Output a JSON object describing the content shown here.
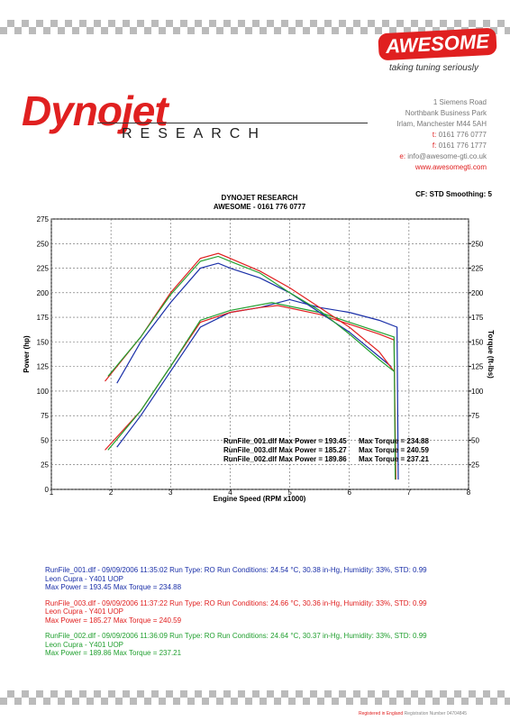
{
  "header": {
    "awesome_logo": "AWESOME",
    "tagline": "taking tuning seriously",
    "dynojet_logo": "Dynojet",
    "research": "RESEARCH",
    "address": [
      "1 Siemens Road",
      "Northbank Business Park",
      "Irlam, Manchester M44 5AH"
    ],
    "contacts": [
      {
        "prefix": "t:",
        "text": "0161 776 0777"
      },
      {
        "prefix": "f:",
        "text": "0161 776 1777"
      },
      {
        "prefix": "e:",
        "text": "info@awesome-gti.co.uk"
      }
    ],
    "web": "www.awesomegti.com"
  },
  "chart_data": {
    "type": "line",
    "title": "DYNOJET RESEARCH",
    "subtitle": "AWESOME - 0161 776 0777",
    "settings": "CF: STD  Smoothing: 5",
    "xlabel": "Engine Speed (RPM x1000)",
    "ylabel": "Power (hp)",
    "y2label": "Torque (ft-lbs)",
    "xlim": [
      1,
      8
    ],
    "xticks": [
      1,
      2,
      3,
      4,
      5,
      6,
      7,
      8
    ],
    "ylim": [
      0,
      275
    ],
    "yticks": [
      0,
      25,
      50,
      75,
      100,
      125,
      150,
      175,
      200,
      225,
      250,
      275
    ],
    "y2lim": [
      0,
      275
    ],
    "y2ticks": [
      25,
      50,
      75,
      100,
      125,
      150,
      175,
      200,
      225,
      250
    ],
    "grid": true,
    "series": [
      {
        "color": "#1a2fa8",
        "x": [
          2.1,
          2.5,
          3,
          3.5,
          4,
          4.5,
          5,
          5.5,
          6,
          6.5,
          6.8,
          6.82
        ],
        "values": [
          43,
          75,
          120,
          165,
          180,
          185,
          193,
          185,
          180,
          172,
          165,
          10
        ]
      },
      {
        "color": "#e02020",
        "x": [
          1.9,
          2.5,
          3,
          3.5,
          4,
          4.5,
          4.8,
          5.5,
          6,
          6.5,
          6.75,
          6.78
        ],
        "values": [
          40,
          80,
          125,
          170,
          180,
          185,
          187,
          178,
          168,
          158,
          152,
          10
        ]
      },
      {
        "color": "#22a030",
        "x": [
          1.95,
          2.5,
          3,
          3.5,
          4,
          4.7,
          5.5,
          6,
          6.5,
          6.75,
          6.77
        ],
        "values": [
          40,
          80,
          125,
          172,
          182,
          190,
          180,
          170,
          160,
          155,
          10
        ]
      },
      {
        "color": "#1a2fa8",
        "axis": "y2",
        "x": [
          2.1,
          2.5,
          3,
          3.5,
          3.8,
          4,
          4.5,
          5,
          5.5,
          6,
          6.5,
          6.7
        ],
        "values": [
          108,
          150,
          190,
          225,
          230,
          225,
          215,
          200,
          180,
          160,
          135,
          125
        ]
      },
      {
        "color": "#e02020",
        "axis": "y2",
        "x": [
          1.9,
          2.5,
          3,
          3.5,
          3.8,
          4,
          4.5,
          5,
          5.5,
          6,
          6.5,
          6.75
        ],
        "values": [
          110,
          155,
          200,
          235,
          240,
          235,
          222,
          205,
          185,
          165,
          140,
          120
        ]
      },
      {
        "color": "#22a030",
        "axis": "y2",
        "x": [
          1.95,
          2.5,
          3,
          3.5,
          3.8,
          4,
          4.5,
          5,
          5.5,
          6,
          6.5,
          6.75
        ],
        "values": [
          115,
          155,
          198,
          232,
          237,
          232,
          220,
          200,
          182,
          158,
          132,
          120
        ]
      }
    ],
    "annotations": [
      {
        "power": "RunFile_001.dlf Max Power = 193.45",
        "torque": "Max Torque = 234.88"
      },
      {
        "power": "RunFile_003.dlf Max Power = 185.27",
        "torque": "Max Torque = 240.59"
      },
      {
        "power": "RunFile_002.dlf Max Power = 189.86",
        "torque": "Max Torque = 237.21"
      }
    ]
  },
  "runs": [
    {
      "color": "#1a2fa8",
      "lines": [
        "RunFile_001.dlf - 09/09/2006 11:35:02  Run Type: RO  Run Conditions: 24.54 °C, 30.38 in-Hg,  Humidity:  33%, STD: 0.99",
        "Leon Cupra -  Y401 UOP",
        "Max Power = 193.45  Max Torque = 234.88"
      ]
    },
    {
      "color": "#e02020",
      "lines": [
        "RunFile_003.dlf - 09/09/2006 11:37:22  Run Type: RO  Run Conditions: 24.66 °C, 30.36 in-Hg,  Humidity:  33%, STD: 0.99",
        "Leon Cupra -  Y401 UOP",
        "Max Power = 185.27  Max Torque = 240.59"
      ]
    },
    {
      "color": "#22a030",
      "lines": [
        "RunFile_002.dlf - 09/09/2006 11:36:09  Run Type: RO  Run Conditions: 24.64 °C, 30.37 in-Hg,  Humidity:  33%, STD: 0.99",
        "Leon Cupra -  Y401 UOP",
        "Max Power = 189.86  Max Torque = 237.21"
      ]
    }
  ],
  "footer": {
    "registered": "Registered in England",
    "number": "Registration Number 04704845"
  }
}
